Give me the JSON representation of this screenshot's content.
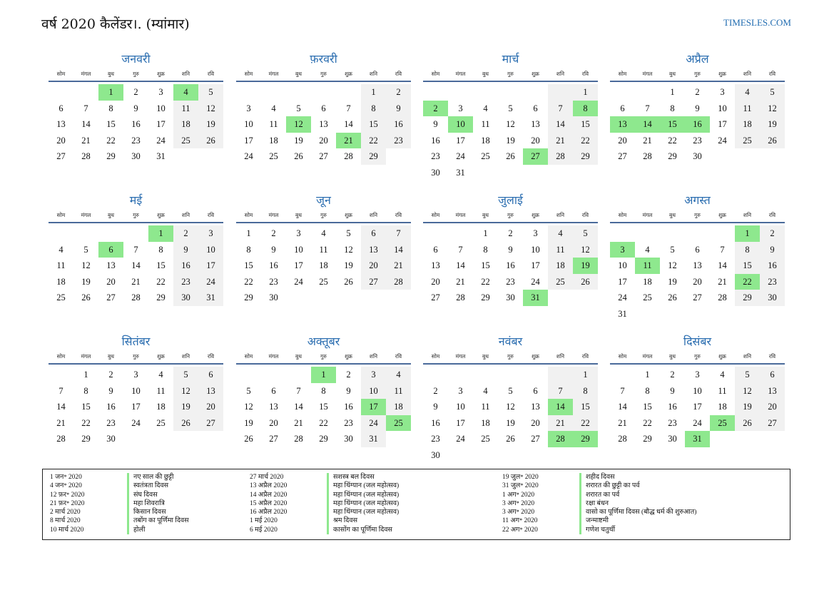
{
  "page": {
    "title": "वर्ष 2020 कैलेंडर।. (म्यांमार)",
    "site": "TIMESLES.COM"
  },
  "weekdays": [
    "सोम",
    "मंगल",
    "बुध",
    "गुरु",
    "शुक्र",
    "शनि",
    "रवि"
  ],
  "months": [
    {
      "name": "जनवरी",
      "start_offset": 2,
      "days": 31,
      "holidays": [
        1,
        4
      ]
    },
    {
      "name": "फ़रवरी",
      "start_offset": 5,
      "days": 29,
      "holidays": [
        12,
        21
      ]
    },
    {
      "name": "मार्च",
      "start_offset": 6,
      "days": 31,
      "holidays": [
        2,
        8,
        10,
        27
      ]
    },
    {
      "name": "अप्रैल",
      "start_offset": 2,
      "days": 30,
      "holidays": [
        13,
        14,
        15,
        16
      ]
    },
    {
      "name": "मई",
      "start_offset": 4,
      "days": 31,
      "holidays": [
        1,
        6
      ]
    },
    {
      "name": "जून",
      "start_offset": 0,
      "days": 30,
      "holidays": []
    },
    {
      "name": "जुलाई",
      "start_offset": 2,
      "days": 31,
      "holidays": [
        19,
        31
      ]
    },
    {
      "name": "अगस्त",
      "start_offset": 5,
      "days": 31,
      "holidays": [
        1,
        3,
        11,
        22
      ]
    },
    {
      "name": "सितंबर",
      "start_offset": 1,
      "days": 30,
      "holidays": []
    },
    {
      "name": "अक्तूबर",
      "start_offset": 3,
      "days": 31,
      "holidays": [
        1,
        17,
        25
      ]
    },
    {
      "name": "नवंबर",
      "start_offset": 6,
      "days": 30,
      "holidays": [
        14,
        28,
        29
      ]
    },
    {
      "name": "दिसंबर",
      "start_offset": 1,
      "days": 31,
      "holidays": [
        25,
        31
      ]
    }
  ],
  "holiday_list": [
    [
      {
        "date": "1 जन॰ 2020",
        "name": "नए साल की छुट्टी"
      },
      {
        "date": "4 जन॰ 2020",
        "name": "स्वतंत्रता दिवस"
      },
      {
        "date": "12 फ़र॰ 2020",
        "name": "संघ दिवस"
      },
      {
        "date": "21 फ़र॰ 2020",
        "name": "महा शिवरात्रि"
      },
      {
        "date": "2 मार्च 2020",
        "name": "किसान दिवस"
      },
      {
        "date": "8 मार्च 2020",
        "name": "तबोंग का पूर्णिमा दिवस"
      },
      {
        "date": "10 मार्च 2020",
        "name": "होली"
      }
    ],
    [
      {
        "date": "27 मार्च 2020",
        "name": "सशस्त्र बल दिवस"
      },
      {
        "date": "13 अप्रैल 2020",
        "name": "महा थिंग्यान (जल महोत्सव)"
      },
      {
        "date": "14 अप्रैल 2020",
        "name": "महा थिंग्यान (जल महोत्सव)"
      },
      {
        "date": "15 अप्रैल 2020",
        "name": "महा थिंग्यान (जल महोत्सव)"
      },
      {
        "date": "16 अप्रैल 2020",
        "name": "महा थिंग्यान (जल महोत्सव)"
      },
      {
        "date": "1 मई 2020",
        "name": "श्रम दिवस"
      },
      {
        "date": "6 मई 2020",
        "name": "कासोंग का पूर्णिमा दिवस"
      }
    ],
    [
      {
        "date": "19 जुल॰ 2020",
        "name": "शहीद दिवस"
      },
      {
        "date": "31 जुल॰ 2020",
        "name": "शरारत की छुट्टी का पर्व"
      },
      {
        "date": "1 अग॰ 2020",
        "name": "शरारत का पर्व"
      },
      {
        "date": "3 अग॰ 2020",
        "name": "रक्षा बंधन"
      },
      {
        "date": "3 अग॰ 2020",
        "name": "वासो का पूर्णिमा दिवस (बौद्ध धर्म की शुरुआत)"
      },
      {
        "date": "11 अग॰ 2020",
        "name": "जन्माष्टमी"
      },
      {
        "date": "22 अग॰ 2020",
        "name": "गणेश चतुर्थी"
      }
    ]
  ],
  "colors": {
    "holiday": "#8ee88e",
    "weekend": "#f1f1f1",
    "accent": "#2a6db0"
  }
}
